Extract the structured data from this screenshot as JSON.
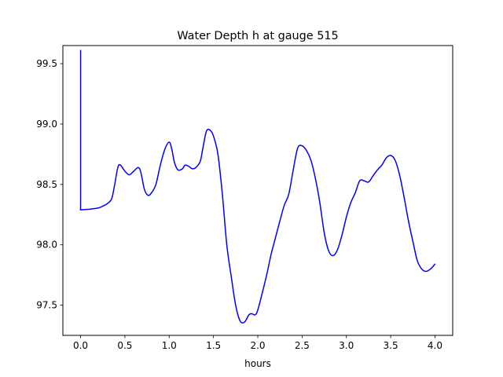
{
  "chart_data": {
    "type": "line",
    "title": "Water Depth h at gauge 515",
    "xlabel": "hours",
    "ylabel": "",
    "xlim": [
      -0.2,
      4.2
    ],
    "ylim": [
      97.25,
      99.65
    ],
    "xticks": [
      0.0,
      0.5,
      1.0,
      1.5,
      2.0,
      2.5,
      3.0,
      3.5,
      4.0
    ],
    "xtick_labels": [
      "0.0",
      "0.5",
      "1.0",
      "1.5",
      "2.0",
      "2.5",
      "3.0",
      "3.5",
      "4.0"
    ],
    "yticks": [
      97.5,
      98.0,
      98.5,
      99.0,
      99.5
    ],
    "ytick_labels": [
      "97.5",
      "98.0",
      "98.5",
      "99.0",
      "99.5"
    ],
    "grid": false,
    "line_color": "#0000ff",
    "series": [
      {
        "x": [
          0.0,
          0.0,
          0.005,
          0.1,
          0.2,
          0.25,
          0.3,
          0.35,
          0.38,
          0.42,
          0.45,
          0.5,
          0.55,
          0.6,
          0.65,
          0.68,
          0.72,
          0.76,
          0.8,
          0.85,
          0.9,
          0.95,
          1.0,
          1.03,
          1.06,
          1.1,
          1.15,
          1.18,
          1.22,
          1.26,
          1.3,
          1.35,
          1.38,
          1.42,
          1.46,
          1.5,
          1.55,
          1.6,
          1.65,
          1.7,
          1.75,
          1.8,
          1.85,
          1.9,
          1.93,
          1.97,
          2.0,
          2.05,
          2.1,
          2.15,
          2.2,
          2.25,
          2.3,
          2.35,
          2.4,
          2.45,
          2.5,
          2.55,
          2.6,
          2.65,
          2.7,
          2.75,
          2.8,
          2.85,
          2.9,
          2.95,
          3.0,
          3.05,
          3.1,
          3.15,
          3.2,
          3.25,
          3.3,
          3.35,
          3.4,
          3.45,
          3.5,
          3.55,
          3.6,
          3.65,
          3.7,
          3.75,
          3.8,
          3.85,
          3.9,
          3.95,
          4.0
        ],
        "y": [
          99.61,
          98.29,
          98.29,
          98.295,
          98.305,
          98.32,
          98.34,
          98.38,
          98.48,
          98.64,
          98.66,
          98.61,
          98.58,
          98.61,
          98.64,
          98.6,
          98.46,
          98.41,
          98.43,
          98.5,
          98.66,
          98.79,
          98.85,
          98.79,
          98.68,
          98.62,
          98.63,
          98.66,
          98.65,
          98.63,
          98.64,
          98.69,
          98.8,
          98.94,
          98.95,
          98.9,
          98.75,
          98.42,
          98.0,
          97.74,
          97.5,
          97.37,
          97.36,
          97.42,
          97.43,
          97.42,
          97.46,
          97.6,
          97.75,
          97.92,
          98.06,
          98.2,
          98.33,
          98.42,
          98.62,
          98.8,
          98.82,
          98.78,
          98.7,
          98.55,
          98.35,
          98.1,
          97.95,
          97.91,
          97.96,
          98.08,
          98.23,
          98.35,
          98.43,
          98.53,
          98.53,
          98.52,
          98.57,
          98.62,
          98.66,
          98.72,
          98.74,
          98.7,
          98.58,
          98.4,
          98.2,
          98.03,
          97.87,
          97.8,
          97.78,
          97.8,
          97.84
        ]
      }
    ]
  }
}
